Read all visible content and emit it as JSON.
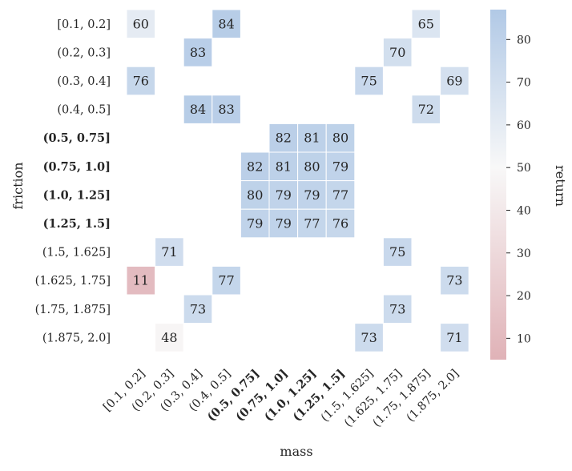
{
  "chart_data": {
    "type": "heatmap",
    "xlabel": "mass",
    "ylabel": "friction",
    "x_categories": [
      "[0.1, 0.2]",
      "(0.2, 0.3]",
      "(0.3, 0.4]",
      "(0.4, 0.5]",
      "(0.5, 0.75]",
      "(0.75, 1.0]",
      "(1.0, 1.25]",
      "(1.25, 1.5]",
      "(1.5, 1.625]",
      "(1.625, 1.75]",
      "(1.75, 1.875]",
      "(1.875, 2.0]"
    ],
    "y_categories": [
      "[0.1, 0.2]",
      "(0.2, 0.3]",
      "(0.3, 0.4]",
      "(0.4, 0.5]",
      "(0.5, 0.75]",
      "(0.75, 1.0]",
      "(1.0, 1.25]",
      "(1.25, 1.5]",
      "(1.5, 1.625]",
      "(1.625, 1.75]",
      "(1.75, 1.875]",
      "(1.875, 2.0]"
    ],
    "bold_categories": [
      "(0.5, 0.75]",
      "(0.75, 1.0]",
      "(1.0, 1.25]",
      "(1.25, 1.5]"
    ],
    "values": [
      [
        60,
        null,
        null,
        84,
        null,
        null,
        null,
        null,
        null,
        null,
        65,
        null
      ],
      [
        null,
        null,
        83,
        null,
        null,
        null,
        null,
        null,
        null,
        70,
        null,
        null
      ],
      [
        76,
        null,
        null,
        null,
        null,
        null,
        null,
        null,
        75,
        null,
        null,
        69
      ],
      [
        null,
        null,
        84,
        83,
        null,
        null,
        null,
        null,
        null,
        null,
        72,
        null
      ],
      [
        null,
        null,
        null,
        null,
        null,
        82,
        81,
        80,
        null,
        null,
        null,
        null
      ],
      [
        null,
        null,
        null,
        null,
        82,
        81,
        80,
        79,
        null,
        null,
        null,
        null
      ],
      [
        null,
        null,
        null,
        null,
        80,
        79,
        79,
        77,
        null,
        null,
        null,
        null
      ],
      [
        null,
        null,
        null,
        null,
        79,
        79,
        77,
        76,
        null,
        null,
        null,
        null
      ],
      [
        null,
        71,
        null,
        null,
        null,
        null,
        null,
        null,
        null,
        75,
        null,
        null
      ],
      [
        11,
        null,
        null,
        77,
        null,
        null,
        null,
        null,
        null,
        null,
        null,
        73
      ],
      [
        null,
        null,
        73,
        null,
        null,
        null,
        null,
        null,
        null,
        73,
        null,
        null
      ],
      [
        null,
        48,
        null,
        null,
        null,
        null,
        null,
        null,
        73,
        null,
        null,
        71
      ]
    ],
    "colorbar": {
      "label": "return",
      "ticks": [
        10,
        20,
        30,
        40,
        50,
        60,
        70,
        80
      ],
      "vmin": 5,
      "vmax": 87,
      "center": 50,
      "low_color": "#e0b2b7",
      "mid_color": "#f8f8f8",
      "high_color": "#b1c9e6"
    }
  }
}
